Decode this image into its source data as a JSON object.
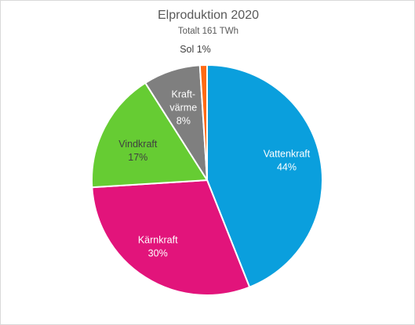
{
  "chart_data": {
    "type": "pie",
    "title": "Elproduktion 2020",
    "subtitle": "Totalt 161 TWh",
    "start_angle_deg": 0,
    "direction": "clockwise",
    "slices": [
      {
        "label": "Vattenkraft",
        "lines": [
          "Vattenkraft",
          "44%"
        ],
        "value": 44,
        "color": "#0a9fdd",
        "text_color": "#ffffff"
      },
      {
        "label": "Kärnkraft",
        "lines": [
          "Kärnkraft",
          "30%"
        ],
        "value": 30,
        "color": "#e2147b",
        "text_color": "#ffffff"
      },
      {
        "label": "Vindkraft",
        "lines": [
          "Vindkraft",
          "17%"
        ],
        "value": 17,
        "color": "#66cc33",
        "text_color": "#404040"
      },
      {
        "label": "Kraftvärme",
        "lines": [
          "Kraft-",
          "värme",
          "8%"
        ],
        "value": 8,
        "color": "#7f7f7f",
        "text_color": "#ffffff"
      },
      {
        "label": "Sol",
        "lines": [
          "Sol 1%"
        ],
        "value": 1,
        "color": "#ff6a13",
        "text_color": "#404040",
        "outside": true
      }
    ]
  }
}
